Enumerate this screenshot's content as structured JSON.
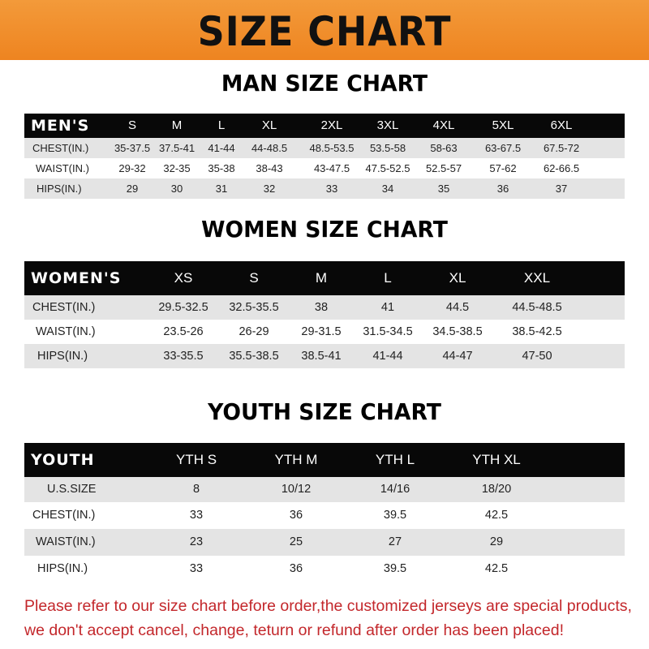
{
  "title": "SIZE CHART",
  "men": {
    "title": "MAN SIZE CHART",
    "header": [
      "MEN'S",
      "S",
      "M",
      "L",
      "XL",
      "2XL",
      "3XL",
      "4XL",
      "5XL",
      "6XL"
    ],
    "rows": [
      [
        "CHEST(IN.)",
        "35-37.5",
        "37.5-41",
        "41-44",
        "44-48.5",
        "48.5-53.5",
        "53.5-58",
        "58-63",
        "63-67.5",
        "67.5-72"
      ],
      [
        "WAIST(IN.)",
        "29-32",
        "32-35",
        "35-38",
        "38-43",
        "43-47.5",
        "47.5-52.5",
        "52.5-57",
        "57-62",
        "62-66.5"
      ],
      [
        "HIPS(IN.)",
        "29",
        "30",
        "31",
        "32",
        "33",
        "34",
        "35",
        "36",
        "37"
      ]
    ]
  },
  "women": {
    "title": "WOMEN SIZE CHART",
    "header": [
      "WOMEN'S",
      "XS",
      "S",
      "M",
      "L",
      "XL",
      "XXL"
    ],
    "rows": [
      [
        "CHEST(IN.)",
        "29.5-32.5",
        "32.5-35.5",
        "38",
        "41",
        "44.5",
        "44.5-48.5"
      ],
      [
        "WAIST(IN.)",
        "23.5-26",
        "26-29",
        "29-31.5",
        "31.5-34.5",
        "34.5-38.5",
        "38.5-42.5"
      ],
      [
        "HIPS(IN.)",
        "33-35.5",
        "35.5-38.5",
        "38.5-41",
        "41-44",
        "44-47",
        "47-50"
      ]
    ]
  },
  "youth": {
    "title": "YOUTH SIZE CHART",
    "header": [
      "YOUTH",
      "YTH S",
      "YTH M",
      "YTH L",
      "YTH XL"
    ],
    "rows": [
      [
        "U.S.SIZE",
        "8",
        "10/12",
        "14/16",
        "18/20"
      ],
      [
        "CHEST(IN.)",
        "33",
        "36",
        "39.5",
        "42.5"
      ],
      [
        "WAIST(IN.)",
        "23",
        "25",
        "27",
        "29"
      ],
      [
        "HIPS(IN.)",
        "33",
        "36",
        "39.5",
        "42.5"
      ]
    ]
  },
  "note": {
    "line1": "Please refer to our size chart before order,the customized jerseys are special products,",
    "line2": "we don't accept cancel, change, teturn or refund after order has been placed!"
  },
  "colors": {
    "banner": "#ee8420",
    "note": "#c3272b",
    "header_bg": "#080808",
    "row_grey": "#e4e4e4"
  }
}
